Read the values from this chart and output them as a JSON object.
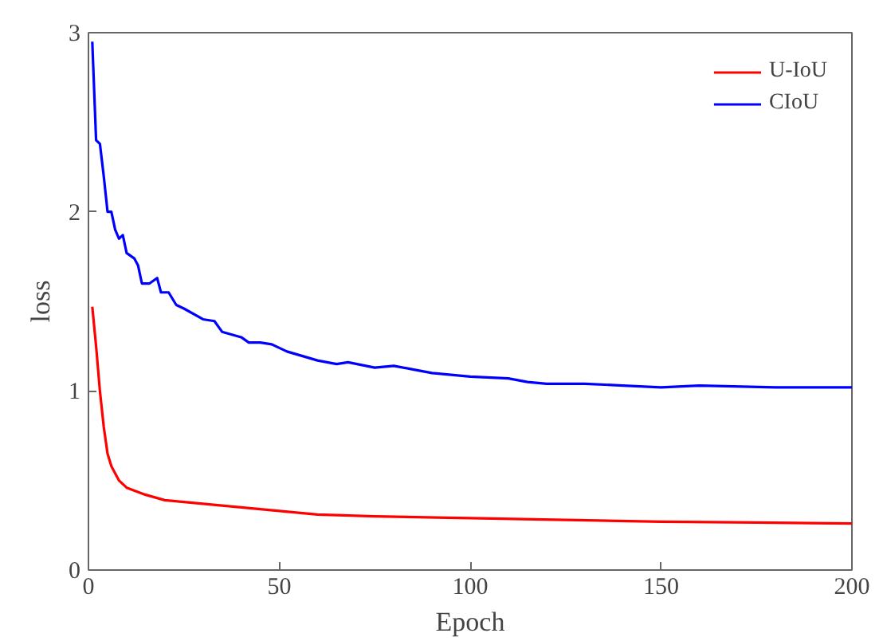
{
  "chart_data": {
    "type": "line",
    "xlabel": "Epoch",
    "ylabel": "loss",
    "xlim": [
      0,
      200
    ],
    "xticks": [
      0,
      50,
      100,
      150,
      200
    ],
    "ylim": [
      0,
      3
    ],
    "yticks": [
      0,
      1,
      2,
      3
    ],
    "grid": false,
    "legend": "top right",
    "marker": "none",
    "line_style": "solid",
    "series": [
      {
        "name": "U-IoU",
        "color": "#ff0000",
        "x": [
          1,
          2,
          3,
          4,
          5,
          6,
          8,
          10,
          15,
          20,
          30,
          40,
          50,
          60,
          75,
          100,
          125,
          150,
          175,
          200
        ],
        "values": [
          1.47,
          1.25,
          1.0,
          0.8,
          0.65,
          0.58,
          0.5,
          0.46,
          0.42,
          0.39,
          0.37,
          0.35,
          0.33,
          0.31,
          0.3,
          0.29,
          0.28,
          0.27,
          0.265,
          0.26
        ]
      },
      {
        "name": "CIoU",
        "color": "#0000ff",
        "x": [
          1,
          2,
          3,
          4,
          5,
          6,
          7,
          8,
          9,
          10,
          12,
          13,
          14,
          16,
          18,
          19,
          21,
          23,
          25,
          30,
          33,
          35,
          40,
          42,
          45,
          48,
          52,
          60,
          65,
          68,
          75,
          80,
          85,
          90,
          100,
          110,
          115,
          120,
          130,
          140,
          150,
          160,
          180,
          200
        ],
        "values": [
          2.95,
          2.4,
          2.38,
          2.2,
          2.0,
          2.0,
          1.9,
          1.85,
          1.87,
          1.77,
          1.74,
          1.7,
          1.6,
          1.6,
          1.63,
          1.55,
          1.55,
          1.48,
          1.46,
          1.4,
          1.39,
          1.33,
          1.3,
          1.27,
          1.27,
          1.26,
          1.22,
          1.17,
          1.15,
          1.16,
          1.13,
          1.14,
          1.12,
          1.1,
          1.08,
          1.07,
          1.05,
          1.04,
          1.04,
          1.03,
          1.02,
          1.03,
          1.02,
          1.02
        ]
      }
    ]
  }
}
